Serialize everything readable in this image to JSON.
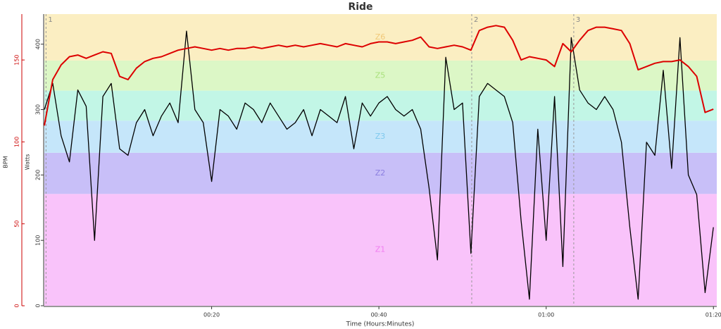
{
  "chart_data": {
    "type": "line",
    "title": "Ride",
    "xlabel": "Time (Hours:Minutes)",
    "ylabel": "Watts",
    "y2label": "BPM",
    "xlim": [
      0,
      80.4
    ],
    "xticks": [
      {
        "value": 20,
        "label": "00:20"
      },
      {
        "value": 40,
        "label": "00:40"
      },
      {
        "value": 60,
        "label": "01:00"
      },
      {
        "value": 80,
        "label": "01:20"
      }
    ],
    "ylim": [
      0,
      446
    ],
    "yticks": [
      0,
      100,
      200,
      300,
      400
    ],
    "y2lim": [
      0,
      178
    ],
    "y2ticks": [
      0,
      50,
      100,
      150
    ],
    "y2color": "#cc0000",
    "zones": [
      {
        "label": "Z1",
        "from": 0,
        "to": 171,
        "color": "#f9c3fa",
        "label_color": "#f07ef0"
      },
      {
        "label": "Z2",
        "from": 171,
        "to": 234,
        "color": "#c8bff8",
        "label_color": "#8c7fe0"
      },
      {
        "label": "Z3",
        "from": 234,
        "to": 283,
        "color": "#c5e6fa",
        "label_color": "#7fc9ee"
      },
      {
        "from": 283,
        "to": 329,
        "color": "#c2f6e6"
      },
      {
        "label": "Z5",
        "from": 329,
        "to": 375,
        "color": "#dcf7c6",
        "label_color": "#a8e07a"
      },
      {
        "label": "Z6",
        "from": 375,
        "to": 446,
        "color": "#fbeec2",
        "label_color": "#f0c878"
      }
    ],
    "markers": [
      {
        "label": "1",
        "x": 0.2
      },
      {
        "label": "2",
        "x": 51.1
      },
      {
        "label": "3",
        "x": 63.3
      }
    ],
    "x": [
      0,
      1,
      2,
      3,
      4,
      5,
      6,
      7,
      8,
      9,
      10,
      11,
      12,
      13,
      14,
      15,
      16,
      17,
      18,
      19,
      20,
      21,
      22,
      23,
      24,
      25,
      26,
      27,
      28,
      29,
      30,
      31,
      32,
      33,
      34,
      35,
      36,
      37,
      38,
      39,
      40,
      41,
      42,
      43,
      44,
      45,
      46,
      47,
      48,
      49,
      50,
      51,
      52,
      53,
      54,
      55,
      56,
      57,
      58,
      59,
      60,
      61,
      62,
      63,
      64,
      65,
      66,
      67,
      68,
      69,
      70,
      71,
      72,
      73,
      74,
      75,
      76,
      77,
      78,
      79,
      80
    ],
    "series": [
      {
        "name": "Watts",
        "color": "#000000",
        "axis": "y",
        "values": [
          300,
          340,
          260,
          220,
          330,
          305,
          100,
          320,
          340,
          240,
          230,
          280,
          300,
          260,
          290,
          310,
          280,
          420,
          300,
          280,
          190,
          300,
          290,
          270,
          310,
          300,
          280,
          310,
          290,
          270,
          280,
          300,
          260,
          300,
          290,
          280,
          320,
          240,
          310,
          290,
          310,
          320,
          300,
          290,
          300,
          270,
          180,
          70,
          380,
          300,
          310,
          80,
          320,
          340,
          330,
          320,
          280,
          130,
          10,
          270,
          100,
          320,
          60,
          410,
          330,
          310,
          300,
          320,
          300,
          250,
          120,
          10,
          250,
          230,
          360,
          210,
          410,
          200,
          170,
          20,
          120
        ]
      },
      {
        "name": "BPM",
        "color": "#dd0000",
        "axis": "y2",
        "values": [
          110,
          138,
          147,
          152,
          153,
          151,
          153,
          155,
          154,
          140,
          138,
          145,
          149,
          151,
          152,
          154,
          156,
          157,
          158,
          157,
          156,
          157,
          156,
          157,
          157,
          158,
          157,
          158,
          159,
          158,
          159,
          158,
          159,
          160,
          159,
          158,
          160,
          159,
          158,
          160,
          161,
          161,
          160,
          161,
          162,
          164,
          158,
          157,
          158,
          159,
          158,
          156,
          168,
          170,
          171,
          170,
          162,
          150,
          152,
          151,
          150,
          146,
          160,
          155,
          162,
          168,
          170,
          170,
          169,
          168,
          160,
          144,
          146,
          148,
          149,
          149,
          150,
          146,
          140,
          118,
          120
        ]
      }
    ]
  }
}
